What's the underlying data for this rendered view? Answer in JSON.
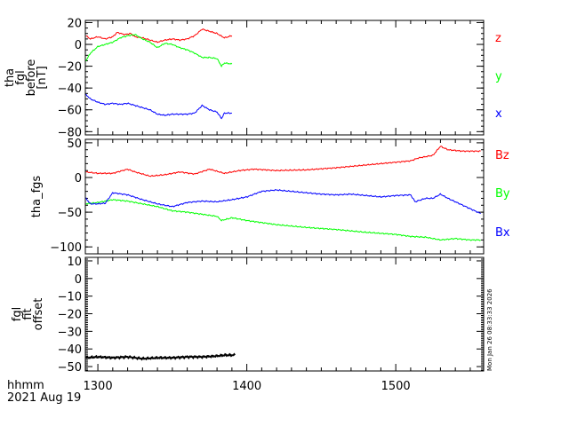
{
  "chart_data": {
    "type": "line",
    "x_axis": {
      "label_line1": "hhmm",
      "label_line2": "2021 Aug 19",
      "xlim": [
        1291.6,
        1559
      ],
      "ticks": [
        1300,
        1400,
        1500
      ],
      "tick_labels": [
        "1300",
        "1400",
        "1500"
      ]
    },
    "timestamp": "Mon Jan 26 08:33:33 2026",
    "panels": [
      {
        "ylabel": [
          "tha",
          "fgl",
          "before",
          "[nT]"
        ],
        "ylim": [
          -83,
          22
        ],
        "ticks": [
          20,
          0,
          -20,
          -40,
          -60,
          -80
        ],
        "tick_labels": [
          "20",
          "0",
          "−20",
          "−40",
          "−60",
          "−80"
        ],
        "minor_step": 5,
        "series": [
          {
            "name": "z",
            "color": "#ff0000",
            "points": [
              [
                1292,
                8
              ],
              [
                1295,
                5
              ],
              [
                1300,
                7
              ],
              [
                1305,
                5
              ],
              [
                1310,
                7
              ],
              [
                1313,
                11
              ],
              [
                1318,
                9
              ],
              [
                1322,
                10
              ],
              [
                1325,
                7
              ],
              [
                1330,
                6
              ],
              [
                1335,
                4
              ],
              [
                1340,
                2
              ],
              [
                1345,
                4
              ],
              [
                1350,
                5
              ],
              [
                1355,
                4
              ],
              [
                1360,
                5
              ],
              [
                1365,
                8
              ],
              [
                1370,
                14
              ],
              [
                1375,
                12
              ],
              [
                1380,
                10
              ],
              [
                1385,
                6
              ],
              [
                1390,
                8
              ]
            ]
          },
          {
            "name": "y",
            "color": "#00ff00",
            "points": [
              [
                1292,
                -15
              ],
              [
                1295,
                -8
              ],
              [
                1300,
                -2
              ],
              [
                1305,
                0
              ],
              [
                1310,
                2
              ],
              [
                1315,
                6
              ],
              [
                1320,
                8
              ],
              [
                1325,
                9
              ],
              [
                1330,
                5
              ],
              [
                1335,
                2
              ],
              [
                1340,
                -3
              ],
              [
                1345,
                1
              ],
              [
                1350,
                0
              ],
              [
                1355,
                -3
              ],
              [
                1360,
                -5
              ],
              [
                1365,
                -8
              ],
              [
                1370,
                -12
              ],
              [
                1375,
                -12
              ],
              [
                1380,
                -13
              ],
              [
                1383,
                -20
              ],
              [
                1385,
                -17
              ],
              [
                1390,
                -18
              ]
            ]
          },
          {
            "name": "x",
            "color": "#0000ff",
            "points": [
              [
                1292,
                -46
              ],
              [
                1295,
                -50
              ],
              [
                1300,
                -53
              ],
              [
                1305,
                -55
              ],
              [
                1310,
                -54
              ],
              [
                1315,
                -55
              ],
              [
                1320,
                -54
              ],
              [
                1325,
                -56
              ],
              [
                1330,
                -58
              ],
              [
                1335,
                -60
              ],
              [
                1340,
                -64
              ],
              [
                1345,
                -65
              ],
              [
                1350,
                -64
              ],
              [
                1355,
                -64
              ],
              [
                1360,
                -64
              ],
              [
                1365,
                -63
              ],
              [
                1370,
                -56
              ],
              [
                1375,
                -60
              ],
              [
                1380,
                -62
              ],
              [
                1383,
                -68
              ],
              [
                1385,
                -63
              ],
              [
                1390,
                -63
              ]
            ]
          }
        ]
      },
      {
        "ylabel": [
          "tha_fgs"
        ],
        "ylim": [
          -110,
          55
        ],
        "ticks": [
          50,
          0,
          -50,
          -100
        ],
        "tick_labels": [
          "50",
          "0",
          "−50",
          "−100"
        ],
        "minor_step": 10,
        "series": [
          {
            "name": "Bz",
            "color": "#ff0000",
            "points": [
              [
                1292,
                8
              ],
              [
                1300,
                6
              ],
              [
                1310,
                6
              ],
              [
                1320,
                12
              ],
              [
                1325,
                8
              ],
              [
                1335,
                2
              ],
              [
                1345,
                4
              ],
              [
                1355,
                8
              ],
              [
                1365,
                5
              ],
              [
                1375,
                12
              ],
              [
                1385,
                6
              ],
              [
                1395,
                10
              ],
              [
                1405,
                12
              ],
              [
                1420,
                10
              ],
              [
                1440,
                11
              ],
              [
                1460,
                14
              ],
              [
                1480,
                18
              ],
              [
                1500,
                22
              ],
              [
                1510,
                24
              ],
              [
                1515,
                28
              ],
              [
                1520,
                30
              ],
              [
                1525,
                32
              ],
              [
                1530,
                45
              ],
              [
                1535,
                40
              ],
              [
                1545,
                38
              ],
              [
                1557,
                38
              ]
            ]
          },
          {
            "name": "By",
            "color": "#00ff00",
            "points": [
              [
                1292,
                -38
              ],
              [
                1300,
                -36
              ],
              [
                1310,
                -32
              ],
              [
                1320,
                -34
              ],
              [
                1330,
                -38
              ],
              [
                1340,
                -42
              ],
              [
                1350,
                -48
              ],
              [
                1360,
                -50
              ],
              [
                1370,
                -53
              ],
              [
                1380,
                -56
              ],
              [
                1383,
                -62
              ],
              [
                1390,
                -58
              ],
              [
                1400,
                -62
              ],
              [
                1420,
                -68
              ],
              [
                1440,
                -72
              ],
              [
                1460,
                -75
              ],
              [
                1480,
                -79
              ],
              [
                1500,
                -82
              ],
              [
                1510,
                -85
              ],
              [
                1520,
                -86
              ],
              [
                1530,
                -90
              ],
              [
                1540,
                -88
              ],
              [
                1550,
                -90
              ],
              [
                1557,
                -90
              ]
            ]
          },
          {
            "name": "Bx",
            "color": "#0000ff",
            "points": [
              [
                1292,
                -30
              ],
              [
                1295,
                -38
              ],
              [
                1300,
                -38
              ],
              [
                1305,
                -37
              ],
              [
                1310,
                -22
              ],
              [
                1320,
                -25
              ],
              [
                1330,
                -32
              ],
              [
                1340,
                -38
              ],
              [
                1350,
                -42
              ],
              [
                1360,
                -36
              ],
              [
                1370,
                -34
              ],
              [
                1380,
                -35
              ],
              [
                1390,
                -32
              ],
              [
                1400,
                -28
              ],
              [
                1410,
                -20
              ],
              [
                1420,
                -18
              ],
              [
                1430,
                -20
              ],
              [
                1440,
                -22
              ],
              [
                1450,
                -24
              ],
              [
                1460,
                -25
              ],
              [
                1470,
                -24
              ],
              [
                1480,
                -26
              ],
              [
                1490,
                -28
              ],
              [
                1500,
                -26
              ],
              [
                1510,
                -25
              ],
              [
                1513,
                -35
              ],
              [
                1520,
                -30
              ],
              [
                1525,
                -30
              ],
              [
                1530,
                -24
              ],
              [
                1535,
                -30
              ],
              [
                1540,
                -35
              ],
              [
                1550,
                -45
              ],
              [
                1557,
                -52
              ]
            ]
          }
        ]
      },
      {
        "ylabel": [
          "fgl",
          "fit",
          "offset"
        ],
        "ylim": [
          -52.5,
          12
        ],
        "ticks": [
          10,
          0,
          -10,
          -20,
          -30,
          -40,
          -50
        ],
        "tick_labels": [
          "10",
          "0",
          "−10",
          "−20",
          "−30",
          "−40",
          "−50"
        ],
        "minor_step": 1,
        "series": [
          {
            "name": "",
            "color": "#000000",
            "points": [
              [
                1292,
                -45
              ],
              [
                1300,
                -44.5
              ],
              [
                1310,
                -45
              ],
              [
                1320,
                -44.5
              ],
              [
                1330,
                -45.5
              ],
              [
                1340,
                -45
              ],
              [
                1350,
                -45
              ],
              [
                1360,
                -44.5
              ],
              [
                1370,
                -44.5
              ],
              [
                1380,
                -44
              ],
              [
                1385,
                -43.5
              ],
              [
                1392,
                -43.5
              ]
            ]
          }
        ]
      }
    ]
  }
}
